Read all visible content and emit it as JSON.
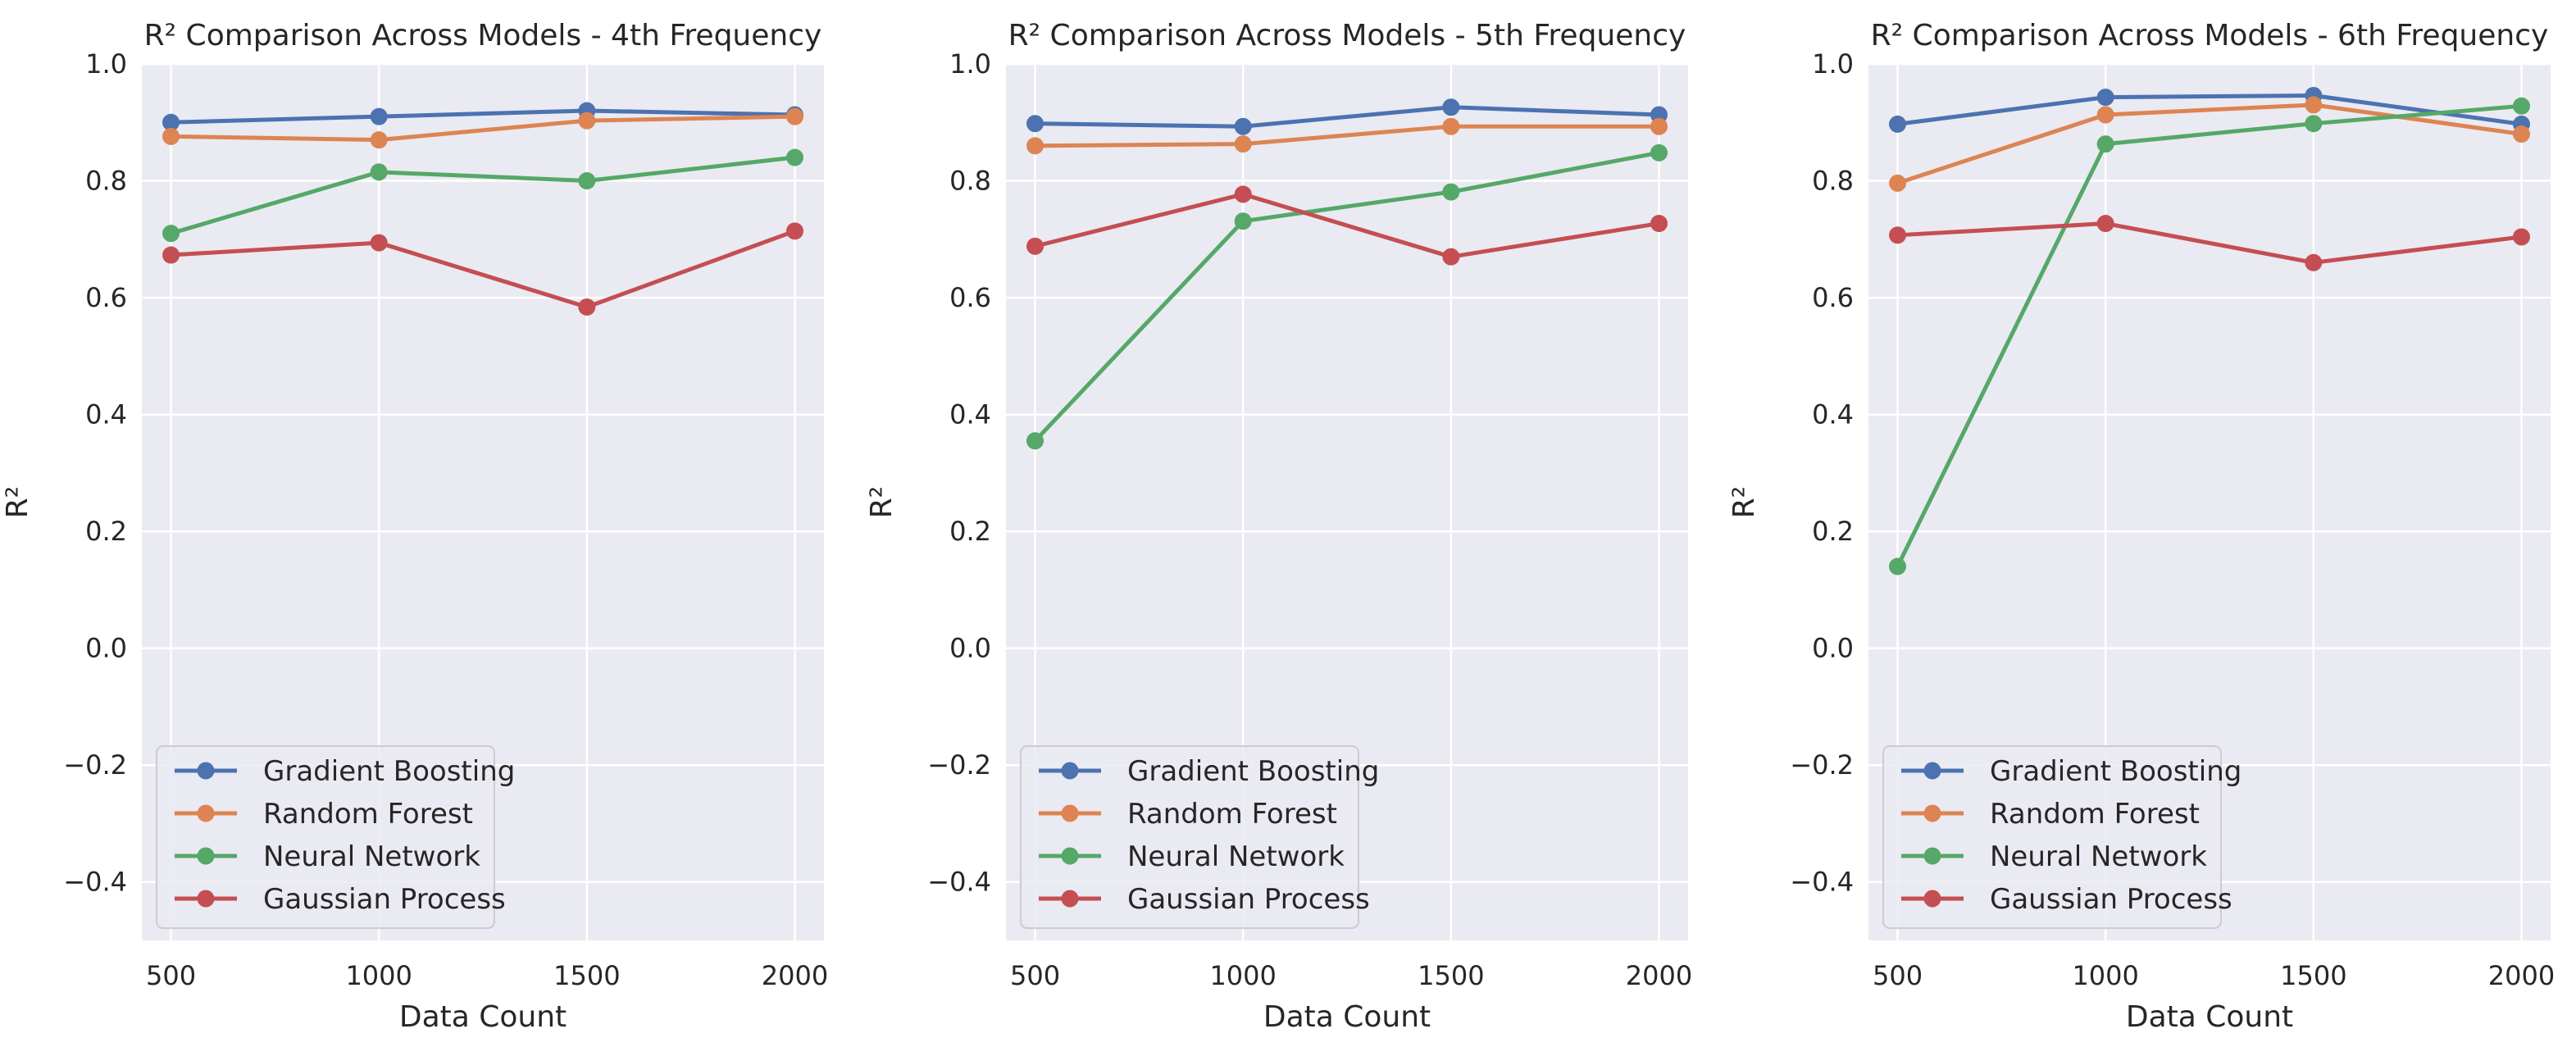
{
  "figure": {
    "colors": {
      "panel_bg": "#EAEAF2",
      "grid": "#FFFFFF",
      "text": "#262626",
      "legend_bg": "#EAEAF2",
      "legend_border": "#CCCCCC"
    }
  },
  "chart_data": [
    {
      "type": "line",
      "title": "R² Comparison Across Models - 4th Frequency",
      "xlabel": "Data Count",
      "ylabel": "R²",
      "x": [
        500,
        1000,
        1500,
        2000
      ],
      "xlim": [
        430,
        2070
      ],
      "ylim": [
        -0.5,
        1.0
      ],
      "xticks": [
        500,
        1000,
        1500,
        2000
      ],
      "yticks": [
        -0.4,
        -0.2,
        0.0,
        0.2,
        0.4,
        0.6,
        0.8,
        1.0
      ],
      "ytick_labels": [
        "−0.4",
        "−0.2",
        "0.0",
        "0.2",
        "0.4",
        "0.6",
        "0.8",
        "1.0"
      ],
      "grid": true,
      "legend_position": "lower-left",
      "series": [
        {
          "name": "Gradient Boosting",
          "color": "#4C72B0",
          "values": [
            0.9,
            0.91,
            0.92,
            0.913
          ]
        },
        {
          "name": "Random Forest",
          "color": "#DD8452",
          "values": [
            0.876,
            0.87,
            0.903,
            0.91
          ]
        },
        {
          "name": "Neural Network",
          "color": "#55A868",
          "values": [
            0.71,
            0.815,
            0.8,
            0.84
          ]
        },
        {
          "name": "Gaussian Process",
          "color": "#C44E52",
          "values": [
            0.673,
            0.694,
            0.584,
            0.714
          ]
        }
      ]
    },
    {
      "type": "line",
      "title": "R² Comparison Across Models - 5th Frequency",
      "xlabel": "Data Count",
      "ylabel": "R²",
      "x": [
        500,
        1000,
        1500,
        2000
      ],
      "xlim": [
        430,
        2070
      ],
      "ylim": [
        -0.5,
        1.0
      ],
      "xticks": [
        500,
        1000,
        1500,
        2000
      ],
      "yticks": [
        -0.4,
        -0.2,
        0.0,
        0.2,
        0.4,
        0.6,
        0.8,
        1.0
      ],
      "ytick_labels": [
        "−0.4",
        "−0.2",
        "0.0",
        "0.2",
        "0.4",
        "0.6",
        "0.8",
        "1.0"
      ],
      "grid": true,
      "legend_position": "lower-left",
      "series": [
        {
          "name": "Gradient Boosting",
          "color": "#4C72B0",
          "values": [
            0.898,
            0.893,
            0.926,
            0.913
          ]
        },
        {
          "name": "Random Forest",
          "color": "#DD8452",
          "values": [
            0.86,
            0.863,
            0.893,
            0.893
          ]
        },
        {
          "name": "Neural Network",
          "color": "#55A868",
          "values": [
            0.355,
            0.731,
            0.781,
            0.848
          ]
        },
        {
          "name": "Gaussian Process",
          "color": "#C44E52",
          "values": [
            0.688,
            0.777,
            0.67,
            0.727
          ]
        }
      ]
    },
    {
      "type": "line",
      "title": "R² Comparison Across Models - 6th Frequency",
      "xlabel": "Data Count",
      "ylabel": "R²",
      "x": [
        500,
        1000,
        1500,
        2000
      ],
      "xlim": [
        430,
        2070
      ],
      "ylim": [
        -0.5,
        1.0
      ],
      "xticks": [
        500,
        1000,
        1500,
        2000
      ],
      "yticks": [
        -0.4,
        -0.2,
        0.0,
        0.2,
        0.4,
        0.6,
        0.8,
        1.0
      ],
      "ytick_labels": [
        "−0.4",
        "−0.2",
        "0.0",
        "0.2",
        "0.4",
        "0.6",
        "0.8",
        "1.0"
      ],
      "grid": true,
      "legend_position": "lower-left",
      "series": [
        {
          "name": "Gradient Boosting",
          "color": "#4C72B0",
          "values": [
            0.897,
            0.943,
            0.946,
            0.897
          ]
        },
        {
          "name": "Random Forest",
          "color": "#DD8452",
          "values": [
            0.796,
            0.913,
            0.93,
            0.88
          ]
        },
        {
          "name": "Neural Network",
          "color": "#55A868",
          "values": [
            0.14,
            0.863,
            0.898,
            0.928
          ]
        },
        {
          "name": "Gaussian Process",
          "color": "#C44E52",
          "values": [
            0.707,
            0.727,
            0.66,
            0.704
          ]
        }
      ]
    }
  ]
}
